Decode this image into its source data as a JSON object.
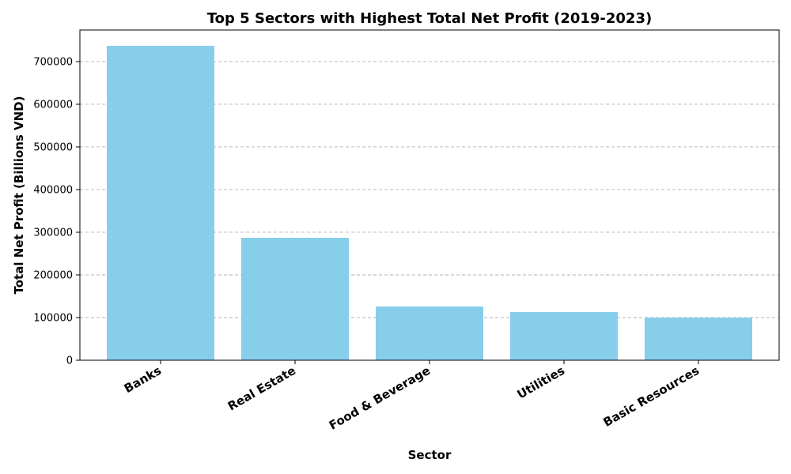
{
  "chart_data": {
    "type": "bar",
    "title": "Top 5 Sectors with Highest Total Net Profit (2019-2023)",
    "xlabel": "Sector",
    "ylabel": "Total Net Profit (Billions VND)",
    "categories": [
      "Banks",
      "Real Estate",
      "Food & Beverage",
      "Utilities",
      "Basic Resources"
    ],
    "values": [
      737000,
      287000,
      126000,
      113000,
      100000
    ],
    "ylim": [
      0,
      774000
    ],
    "yticks": [
      0,
      100000,
      200000,
      300000,
      400000,
      500000,
      600000,
      700000
    ],
    "ytick_labels": [
      "0",
      "100000",
      "200000",
      "300000",
      "400000",
      "500000",
      "600000",
      "700000"
    ],
    "bar_color": "#87ceeb",
    "grid": "y-axis dashed",
    "legend": "none"
  }
}
